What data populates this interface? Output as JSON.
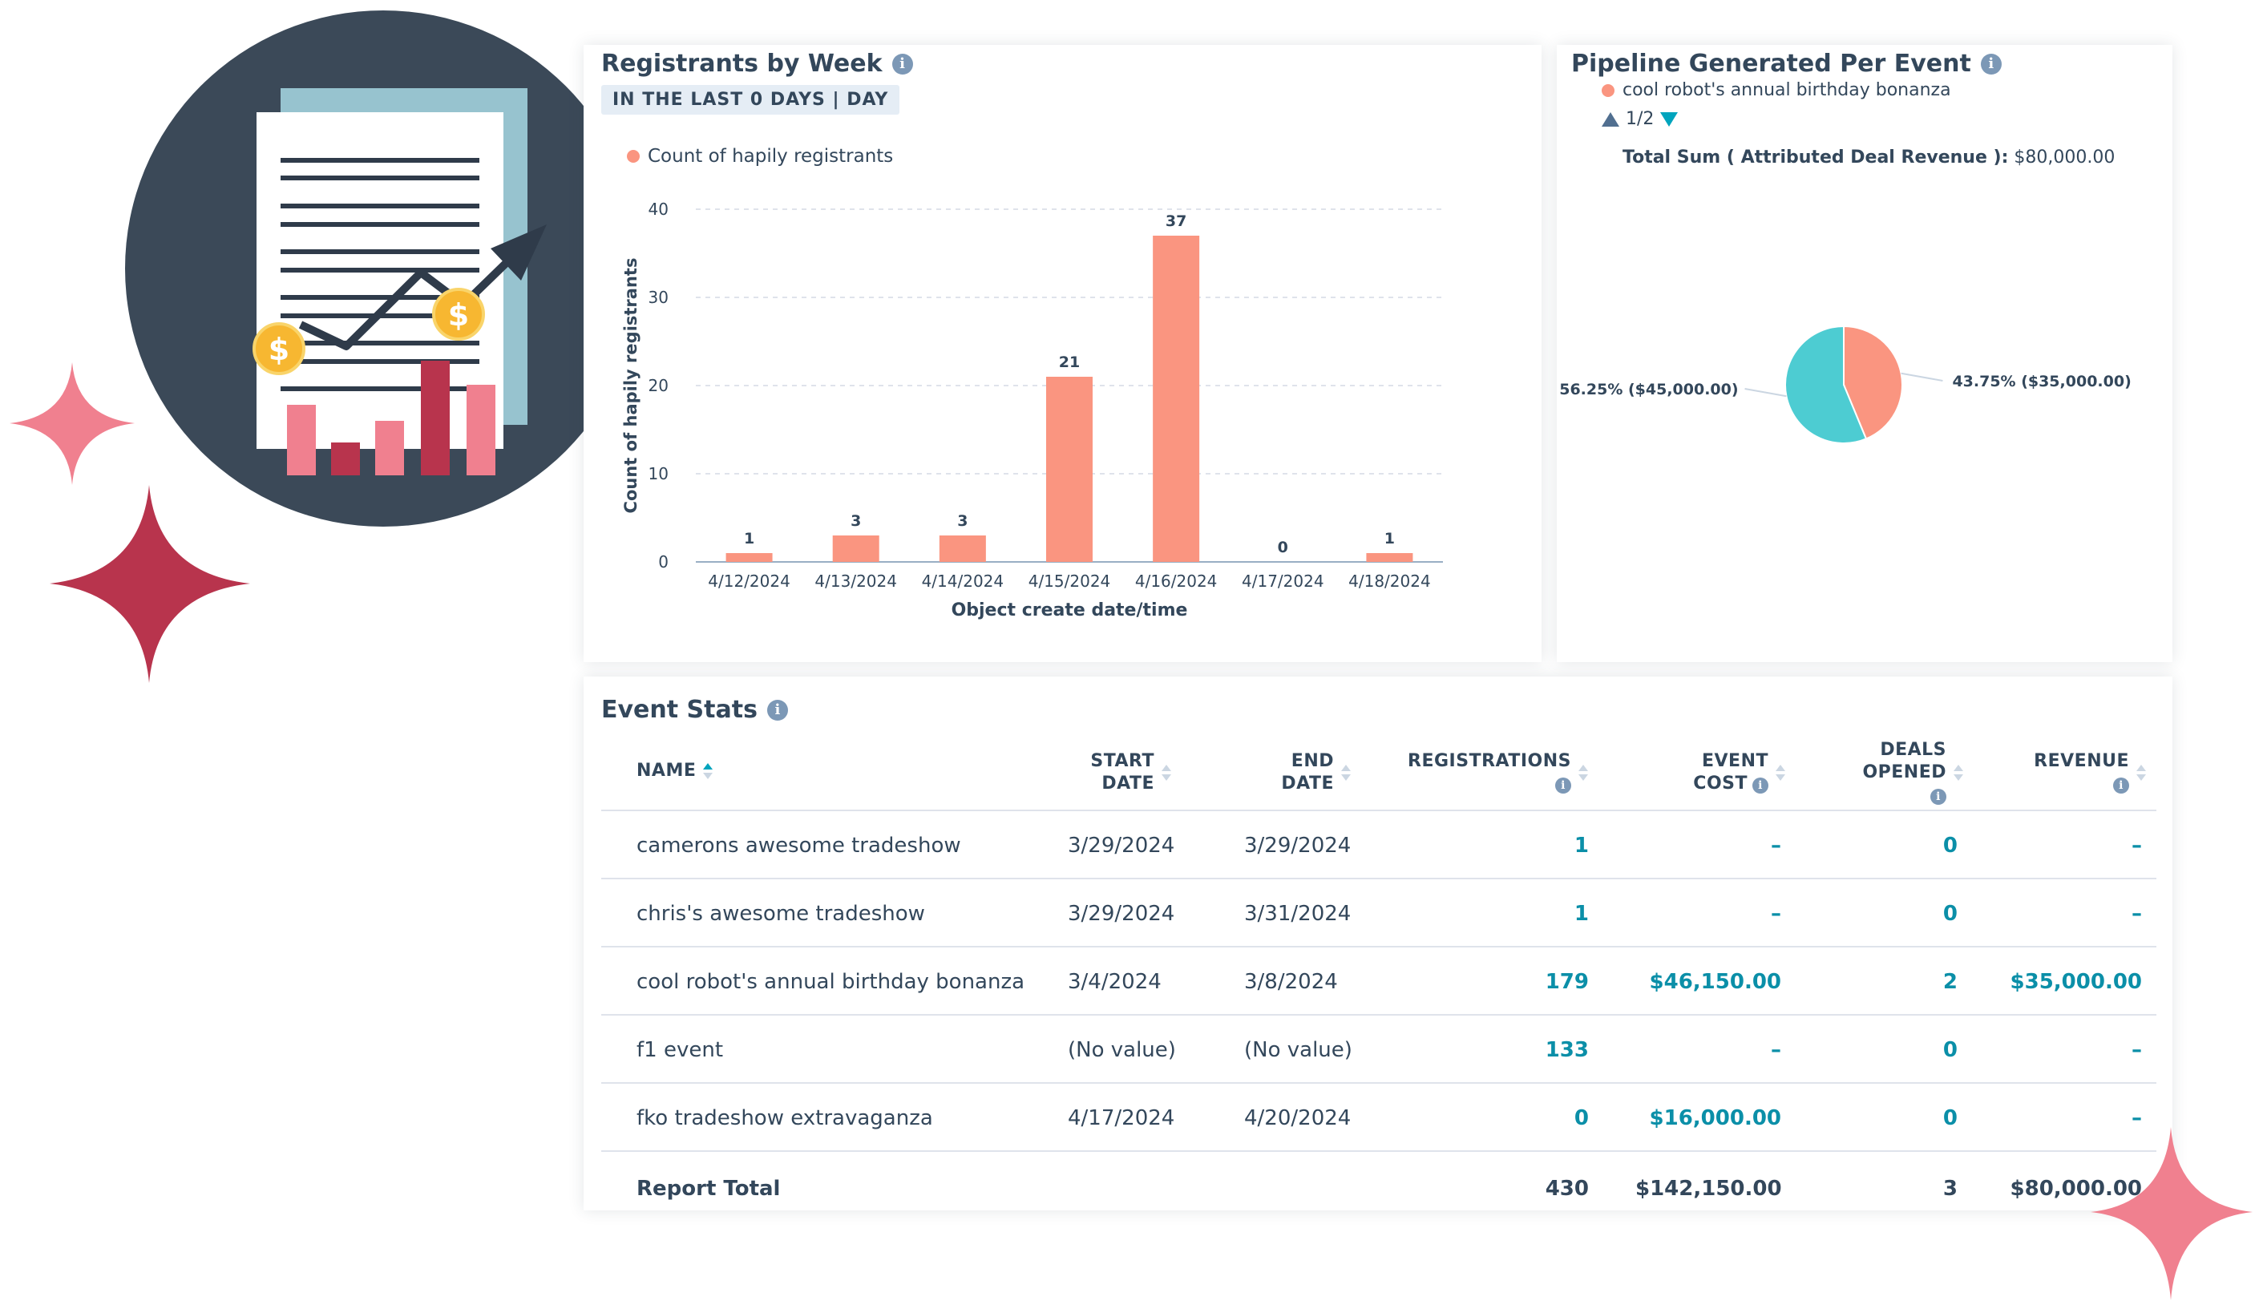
{
  "colors": {
    "bar": "#fa9580",
    "pie_teal": "#4dccd2",
    "pie_salmon": "#fa9580",
    "link_teal": "#0b8fa8",
    "sparkle_pink": "#f0808f",
    "sparkle_red": "#b8344d",
    "circle_dark": "#3b4958"
  },
  "registrants_card": {
    "title": "Registrants by Week",
    "badge": "IN THE LAST 0 DAYS | DAY",
    "legend": "Count of hapily registrants"
  },
  "pipeline_card": {
    "title": "Pipeline Generated Per Event",
    "legend": "cool robot's annual birthday bonanza",
    "pager": "1/2",
    "total_label": "Total Sum ( Attributed Deal Revenue ):",
    "total_value": "$80,000.00"
  },
  "chart_data": [
    {
      "type": "bar",
      "title": "Registrants by Week",
      "categories": [
        "4/12/2024",
        "4/13/2024",
        "4/14/2024",
        "4/15/2024",
        "4/16/2024",
        "4/17/2024",
        "4/18/2024"
      ],
      "series": [
        {
          "name": "Count of hapily registrants",
          "values": [
            1,
            3,
            3,
            21,
            37,
            0,
            1
          ]
        }
      ],
      "xlabel": "Object create date/time",
      "ylabel": "Count of hapily registrants",
      "ylim": [
        0,
        40
      ],
      "yticks": [
        0,
        10,
        20,
        30,
        40
      ],
      "grid": true,
      "legend": "top-left"
    },
    {
      "type": "pie",
      "title": "Pipeline Generated Per Event",
      "slices": [
        {
          "label": "43.75% ($35,000.00)",
          "value": 35000,
          "percent": 43.75,
          "color": "#fa9580"
        },
        {
          "label": "56.25% ($45,000.00)",
          "value": 45000,
          "percent": 56.25,
          "color": "#4dccd2"
        }
      ]
    }
  ],
  "event_stats": {
    "title": "Event Stats",
    "columns": {
      "name": "NAME",
      "start_1": "START",
      "start_2": "DATE",
      "end_1": "END",
      "end_2": "DATE",
      "registrations": "REGISTRATIONS",
      "cost_1": "EVENT",
      "cost_2": "COST",
      "deals_1": "DEALS",
      "deals_2": "OPENED",
      "revenue": "REVENUE"
    },
    "rows": [
      {
        "name": "camerons awesome tradeshow",
        "start": "3/29/2024",
        "end": "3/29/2024",
        "registrations": "1",
        "cost": "–",
        "deals": "0",
        "revenue": "–"
      },
      {
        "name": "chris's awesome tradeshow",
        "start": "3/29/2024",
        "end": "3/31/2024",
        "registrations": "1",
        "cost": "–",
        "deals": "0",
        "revenue": "–"
      },
      {
        "name": "cool robot's annual birthday bonanza",
        "start": "3/4/2024",
        "end": "3/8/2024",
        "registrations": "179",
        "cost": "$46,150.00",
        "deals": "2",
        "revenue": "$35,000.00"
      },
      {
        "name": "f1 event",
        "start": "(No value)",
        "end": "(No value)",
        "registrations": "133",
        "cost": "–",
        "deals": "0",
        "revenue": "–"
      },
      {
        "name": "fko tradeshow extravaganza",
        "start": "4/17/2024",
        "end": "4/20/2024",
        "registrations": "0",
        "cost": "$16,000.00",
        "deals": "0",
        "revenue": "–"
      }
    ],
    "total": {
      "label": "Report Total",
      "registrations": "430",
      "cost": "$142,150.00",
      "deals": "3",
      "revenue": "$80,000.00"
    }
  }
}
